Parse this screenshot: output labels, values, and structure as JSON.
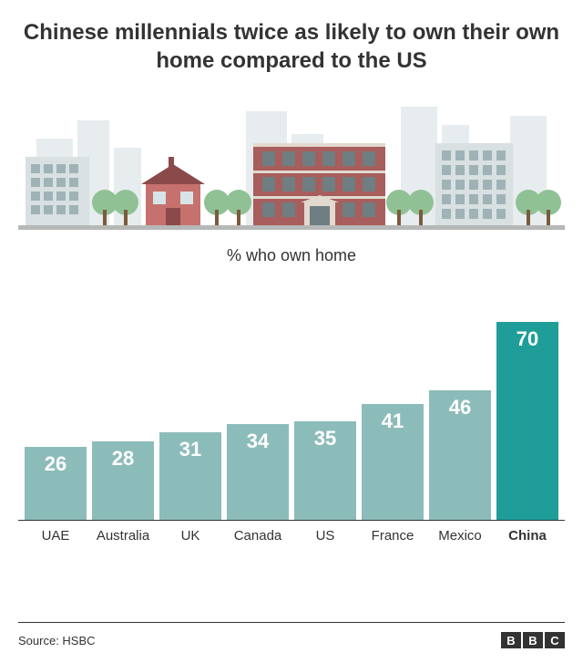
{
  "title": "Chinese millennials twice as likely to own their own home compared to the US",
  "subtitle": "% who own home",
  "source": "Source: HSBC",
  "logo_letters": [
    "B",
    "B",
    "C"
  ],
  "chart": {
    "type": "bar",
    "ymax": 90,
    "bar_color_default": "#8cbcb9",
    "bar_color_highlight": "#1f9e99",
    "value_color": "#ffffff",
    "value_fontsize": 22,
    "label_fontsize": 15,
    "axis_color": "#333333",
    "background_color": "#ffffff",
    "bars": [
      {
        "label": "UAE",
        "value": 26,
        "highlight": false
      },
      {
        "label": "Australia",
        "value": 28,
        "highlight": false
      },
      {
        "label": "UK",
        "value": 31,
        "highlight": false
      },
      {
        "label": "Canada",
        "value": 34,
        "highlight": false
      },
      {
        "label": "US",
        "value": 35,
        "highlight": false
      },
      {
        "label": "France",
        "value": 41,
        "highlight": false
      },
      {
        "label": "Mexico",
        "value": 46,
        "highlight": false
      },
      {
        "label": "China",
        "value": 70,
        "highlight": true
      }
    ]
  },
  "illustration": {
    "skyline_color": "#e7ecee",
    "ground_color": "#b6b8b7",
    "tree_green": "#90c195",
    "tree_trunk": "#7a5b3e",
    "house1_roof": "#8a4a4a",
    "house1_wall": "#c6716e",
    "house1_window": "#d7e3e6",
    "building_wall": "#a85e5c",
    "building_trim": "#e2d9d0",
    "building_window": "#6e7e82",
    "apt_wall": "#d9e0e2",
    "apt_window": "#9fb3b7"
  }
}
